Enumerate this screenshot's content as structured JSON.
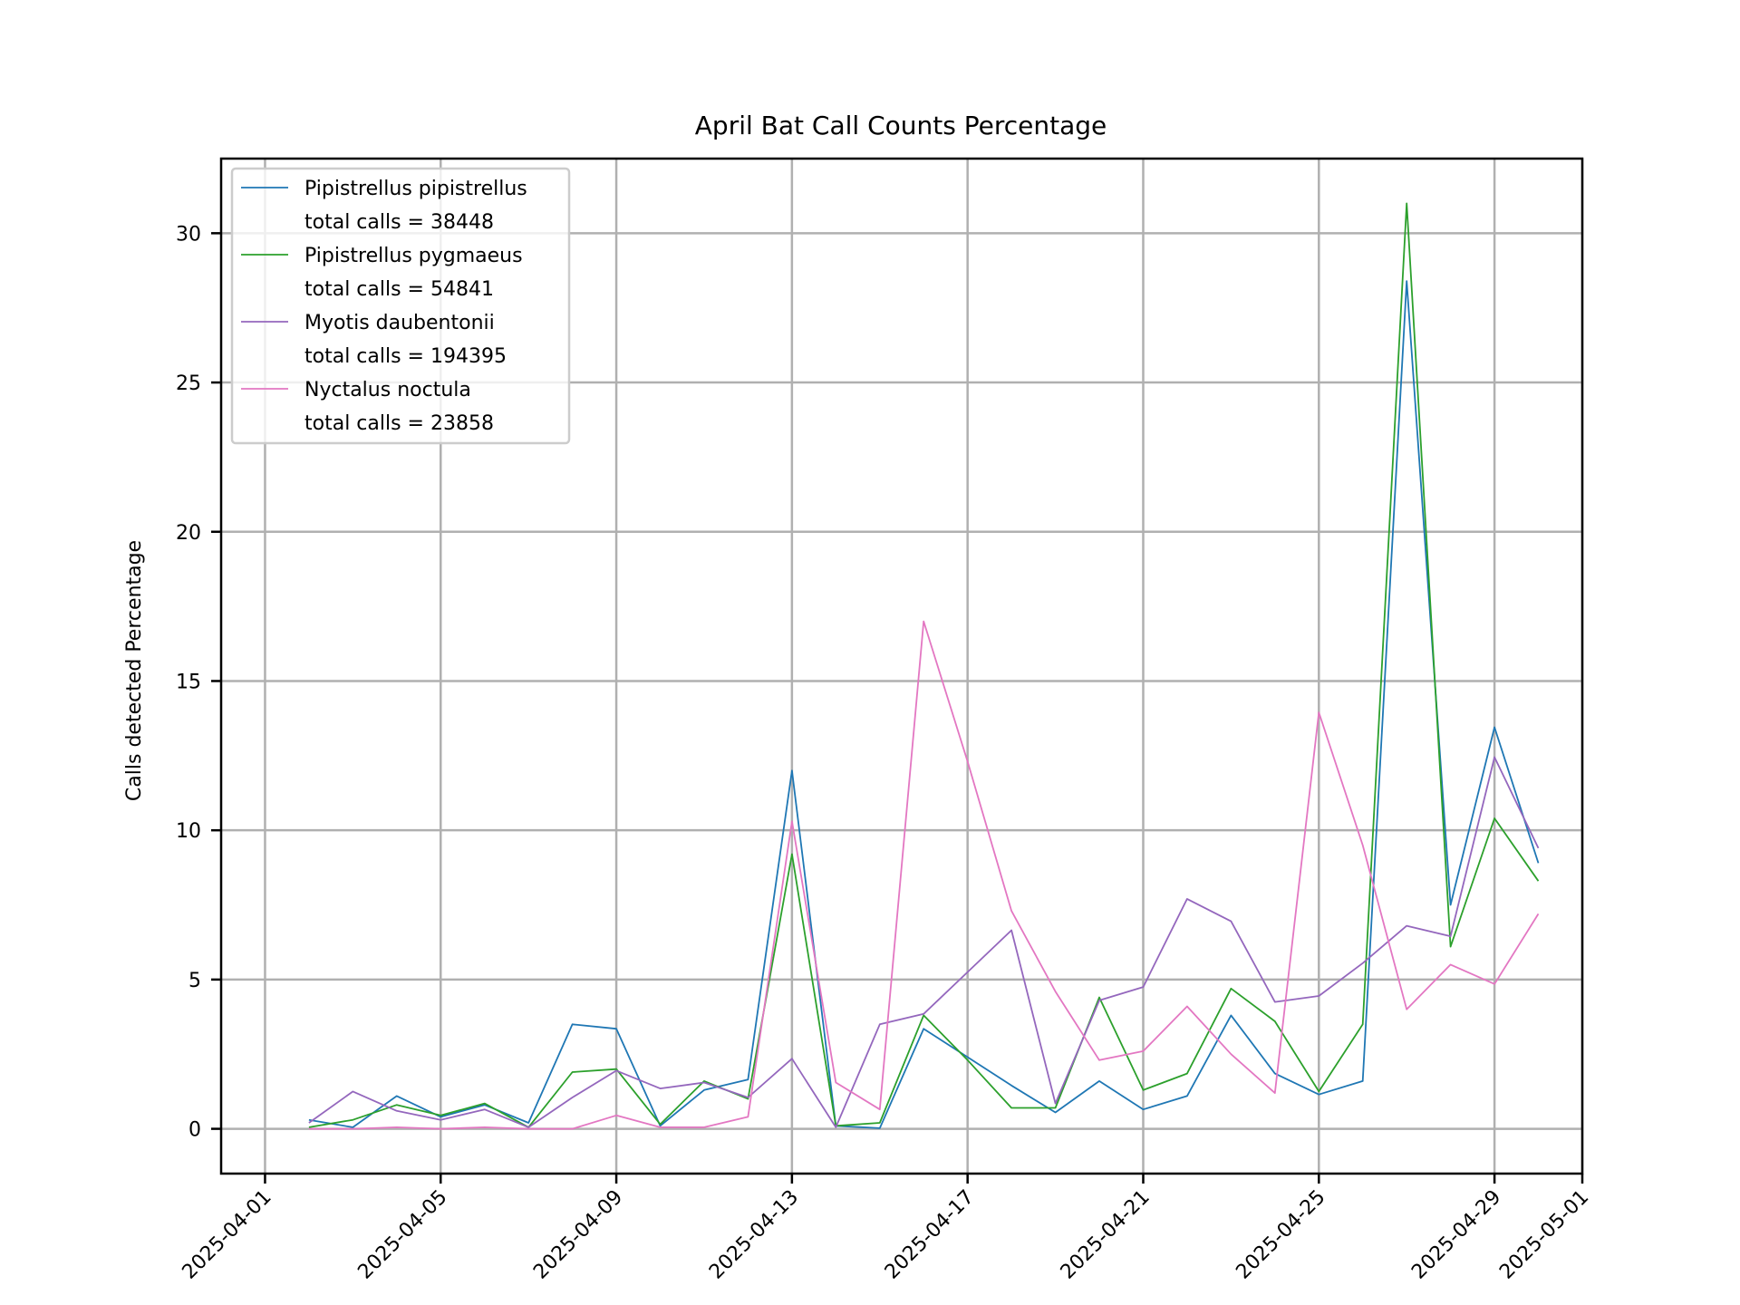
{
  "chart_data": {
    "type": "line",
    "title": "April Bat Call Counts Percentage",
    "xlabel": "",
    "ylabel": "Calls detected Percentage",
    "x_ticks": [
      "2025-04-01",
      "2025-04-05",
      "2025-04-09",
      "2025-04-13",
      "2025-04-17",
      "2025-04-21",
      "2025-04-25",
      "2025-04-29",
      "2025-05-01"
    ],
    "y_ticks": [
      0,
      5,
      10,
      15,
      20,
      25,
      30
    ],
    "xlim": [
      "2025-03-31",
      "2025-05-01"
    ],
    "ylim": [
      -1.5,
      32.5
    ],
    "grid": true,
    "legend_position": "top-left",
    "x": [
      "2025-04-02",
      "2025-04-03",
      "2025-04-04",
      "2025-04-05",
      "2025-04-06",
      "2025-04-07",
      "2025-04-08",
      "2025-04-09",
      "2025-04-10",
      "2025-04-11",
      "2025-04-12",
      "2025-04-13",
      "2025-04-14",
      "2025-04-15",
      "2025-04-16",
      "2025-04-17",
      "2025-04-18",
      "2025-04-19",
      "2025-04-20",
      "2025-04-21",
      "2025-04-22",
      "2025-04-23",
      "2025-04-24",
      "2025-04-25",
      "2025-04-26",
      "2025-04-27",
      "2025-04-28",
      "2025-04-29",
      "2025-04-30"
    ],
    "series": [
      {
        "name": "Pipistrellus pipistrellus",
        "legend_total": "total calls = 38448",
        "color": "#1f77b4",
        "values": [
          0.3,
          0.05,
          1.1,
          0.4,
          0.8,
          0.2,
          3.5,
          3.35,
          0.1,
          1.3,
          1.65,
          12.0,
          0.1,
          0.02,
          3.35,
          2.4,
          1.45,
          0.55,
          1.6,
          0.65,
          1.1,
          3.8,
          1.85,
          1.15,
          1.6,
          28.4,
          7.5,
          13.45,
          8.9
        ]
      },
      {
        "name": "Pipistrellus pygmaeus",
        "legend_total": "total calls = 54841",
        "color": "#2ca02c",
        "values": [
          0.05,
          0.3,
          0.8,
          0.45,
          0.85,
          0.05,
          1.9,
          2.0,
          0.15,
          1.6,
          1.0,
          9.2,
          0.1,
          0.2,
          3.8,
          2.3,
          0.7,
          0.7,
          4.4,
          1.3,
          1.85,
          4.7,
          3.6,
          1.25,
          3.5,
          31.0,
          6.1,
          10.4,
          8.3
        ]
      },
      {
        "name": "Myotis daubentonii",
        "legend_total": "total calls = 194395",
        "color": "#9467bd",
        "values": [
          0.2,
          1.25,
          0.6,
          0.3,
          0.65,
          0.05,
          1.05,
          1.95,
          1.35,
          1.55,
          1.05,
          2.35,
          0.05,
          3.5,
          3.85,
          5.25,
          6.65,
          0.85,
          4.3,
          4.75,
          7.7,
          6.95,
          4.25,
          4.45,
          5.55,
          6.8,
          6.45,
          12.45,
          9.4
        ]
      },
      {
        "name": "Nyctalus noctula",
        "legend_total": "total calls = 23858",
        "color": "#e377c2",
        "values": [
          0.0,
          0.0,
          0.05,
          0.0,
          0.05,
          0.0,
          0.0,
          0.45,
          0.05,
          0.05,
          0.4,
          10.3,
          1.55,
          0.65,
          17.0,
          12.3,
          7.3,
          4.6,
          2.3,
          2.6,
          4.1,
          2.5,
          1.2,
          13.95,
          9.5,
          4.0,
          5.5,
          4.85,
          7.2
        ]
      }
    ]
  }
}
